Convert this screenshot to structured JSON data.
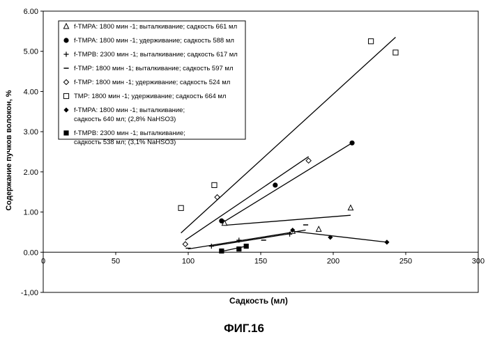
{
  "caption": "ФИГ.16",
  "chart_data": {
    "type": "scatter",
    "xlabel": "Садкость (мл)",
    "ylabel": "Содержание пучков волокон, %",
    "xlim": [
      0,
      300
    ],
    "ylim": [
      -1.0,
      6.0
    ],
    "x_ticks": [
      "0",
      "50",
      "100",
      "150",
      "200",
      "250",
      "300"
    ],
    "y_ticks": [
      "-1,00",
      "0.00",
      "1.00",
      "2.00",
      "3.00",
      "4.00",
      "5.00",
      "6.00"
    ],
    "x_tick_values": [
      0,
      50,
      100,
      150,
      200,
      250,
      300
    ],
    "y_tick_values": [
      -1,
      0,
      1,
      2,
      3,
      4,
      5,
      6
    ],
    "grid": false,
    "legend_position": "top-left",
    "series": [
      {
        "name": "f-TMPA: 1800 мин -1; выталкивание; садкость 661 мл",
        "legend_lines": [
          "f-TMPA: 1800 мин -1; выталкивание; садкость 661 мл"
        ],
        "marker": "triangle-open",
        "points": [
          [
            125,
            0.72
          ],
          [
            172,
            0.52
          ],
          [
            190,
            0.57
          ],
          [
            212,
            1.1
          ]
        ]
      },
      {
        "name": "f-TMPA: 1800 мин -1; удерживание; садкость 588 мл",
        "legend_lines": [
          "f-TMPA: 1800 мин -1; удерживание; садкость 588 мл"
        ],
        "marker": "circle-filled",
        "points": [
          [
            123,
            0.78
          ],
          [
            160,
            1.67
          ],
          [
            213,
            2.72
          ]
        ]
      },
      {
        "name": "f-TMPB: 2300 мин -1; выталкивание; садкость 617 мл",
        "legend_lines": [
          "f-TMPB: 2300 мин -1; выталкивание; садкость 617 мл"
        ],
        "marker": "plus",
        "points": [
          [
            116,
            0.15
          ],
          [
            135,
            0.3
          ],
          [
            170,
            0.45
          ]
        ]
      },
      {
        "name": "f-TMP: 1800 мин -1; выталкивание; садкость 597 мл",
        "legend_lines": [
          "f-TMP: 1800 мин -1; выталкивание; садкость 597 мл"
        ],
        "marker": "dash",
        "points": [
          [
            100,
            0.1
          ],
          [
            152,
            0.3
          ],
          [
            181,
            0.68
          ]
        ]
      },
      {
        "name": "f-TMP: 1800 мин -1; удерживание; садкость 524 мл",
        "legend_lines": [
          "f-TMP: 1800 мин -1; удерживание; садкость 524 мл"
        ],
        "marker": "diamond-open",
        "points": [
          [
            98,
            0.2
          ],
          [
            120,
            1.37
          ],
          [
            183,
            2.28
          ]
        ]
      },
      {
        "name": "TMP: 1800 мин -1; удерживание; садкость 664 мл",
        "legend_lines": [
          "TMP: 1800 мин -1; удерживание; садкость 664 мл"
        ],
        "marker": "square-open",
        "points": [
          [
            95,
            1.1
          ],
          [
            118,
            1.67
          ],
          [
            226,
            5.25
          ],
          [
            243,
            4.97
          ]
        ]
      },
      {
        "name": "f-TMPA: 1800 мин -1; выталкивание; садкость 640 мл; (2,8% NaHSO3)",
        "legend_lines": [
          "f-TMPA: 1800 мин -1; выталкивание;",
          "садкость 640 мл; (2,8% NaHSO3)"
        ],
        "marker": "diamond-filled",
        "points": [
          [
            172,
            0.55
          ],
          [
            198,
            0.37
          ],
          [
            237,
            0.25
          ]
        ]
      },
      {
        "name": "f-TMPB: 2300 мин -1; выталкивание; садкость 538 мл; (3,1% NaHSO3)",
        "legend_lines": [
          "f-TMPB: 2300 мин -1; выталкивание;",
          "садкость 538 мл; (3,1% NaHSO3)"
        ],
        "marker": "square-filled",
        "points": [
          [
            123,
            0.03
          ],
          [
            135,
            0.08
          ],
          [
            140,
            0.15
          ]
        ]
      }
    ],
    "trendlines": [
      {
        "series": "f-TMPA: 1800 мин -1; выталкивание; садкость 661 мл",
        "from": [
          125,
          0.67
        ],
        "to": [
          212,
          0.92
        ]
      },
      {
        "series": "f-TMPA: 1800 мин -1; удерживание; садкость 588 мл",
        "from": [
          123,
          0.72
        ],
        "to": [
          213,
          2.72
        ]
      },
      {
        "series": "f-TMPB: 2300 мин -1; выталкивание; садкость 617 мл",
        "from": [
          116,
          0.15
        ],
        "to": [
          170,
          0.46
        ]
      },
      {
        "series": "f-TMP: 1800 мин -1; выталкивание; садкость 597 мл",
        "from": [
          100,
          0.08
        ],
        "to": [
          181,
          0.55
        ]
      },
      {
        "series": "f-TMP: 1800 мин -1; удерживание; садкость 524 мл",
        "from": [
          98,
          0.3
        ],
        "to": [
          183,
          2.38
        ]
      },
      {
        "series": "TMP: 1800 мин -1; удерживание; садкость 664 мл",
        "from": [
          95,
          0.48
        ],
        "to": [
          243,
          5.35
        ]
      },
      {
        "series": "f-TMPA: 1800 мин -1; выталкивание; садкость 640 мл; (2,8% NaHSO3)",
        "from": [
          172,
          0.52
        ],
        "to": [
          237,
          0.25
        ]
      },
      {
        "series": "f-TMPB: 2300 мин -1; выталкивание; садкость 538 мл; (3,1% NaHSO3)",
        "from": [
          123,
          0.02
        ],
        "to": [
          140,
          0.15
        ]
      }
    ]
  }
}
